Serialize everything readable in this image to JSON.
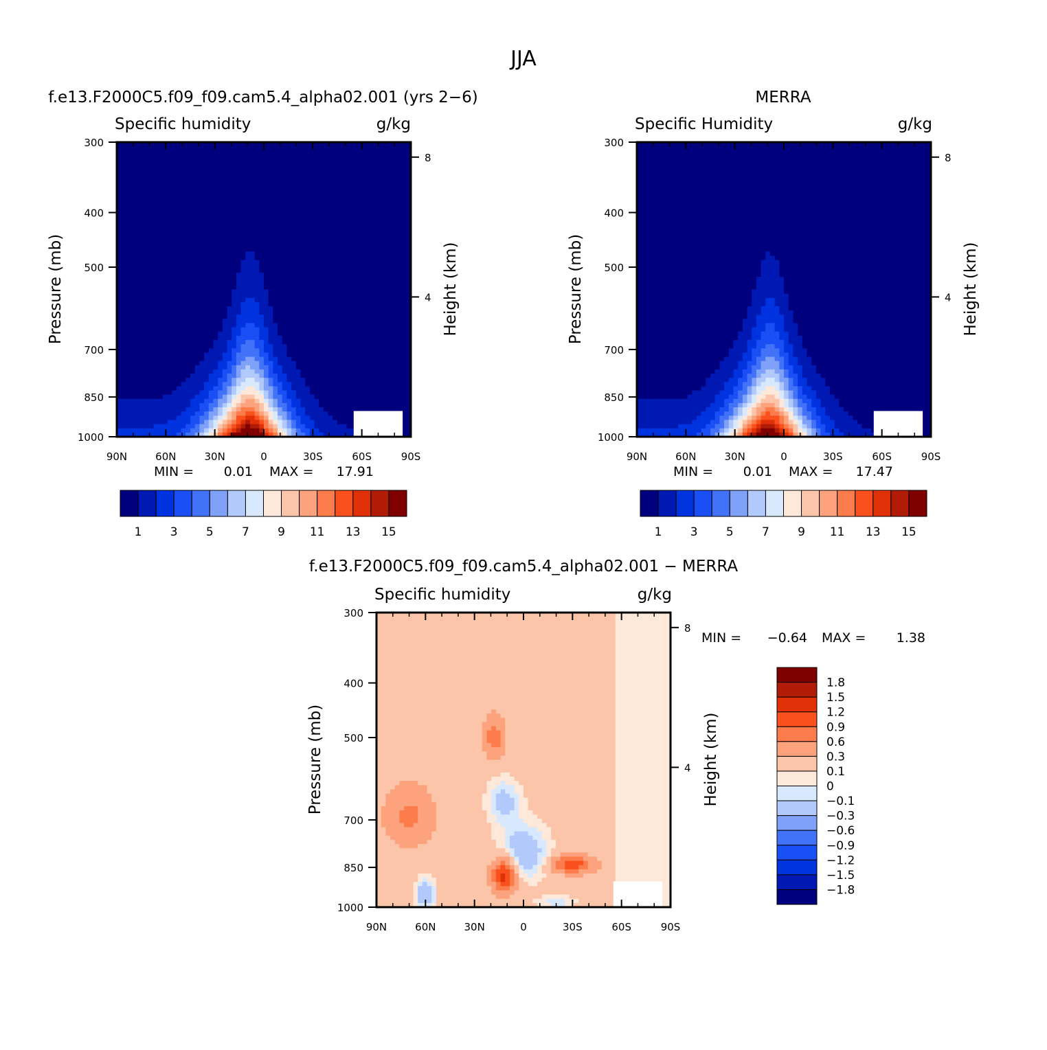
{
  "figure_title": "JJA",
  "ticks": {
    "lat": [
      "90N",
      "60N",
      "30N",
      "0",
      "30S",
      "60S",
      "90S"
    ],
    "pressure": [
      "300",
      "400",
      "500",
      "700",
      "850",
      "1000"
    ],
    "height": [
      "8",
      "4"
    ]
  },
  "axis_labels": {
    "pressure": "Pressure (mb)",
    "height": "Height (km)"
  },
  "chart_data": [
    {
      "type": "heatmap",
      "title": "f.e13.F2000C5.f09_f09.cam5.4_alpha02.001 (yrs 2−6)",
      "variable": "Specific humidity",
      "units": "g/kg",
      "min_label": "MIN =",
      "min_value": "0.01",
      "max_label": "MAX =",
      "max_value": "17.91",
      "xlim": [
        90,
        -90
      ],
      "ylim_mb": [
        1000,
        300
      ],
      "peak": {
        "lat": 8,
        "value": 17.91
      },
      "colorbar": {
        "labels": [
          "1",
          "3",
          "5",
          "7",
          "9",
          "11",
          "13",
          "15"
        ],
        "colors": [
          "#00007f",
          "#0019b3",
          "#0033e0",
          "#1a4ff5",
          "#4272f7",
          "#80a1f8",
          "#b2c9fb",
          "#d9e9fd",
          "#fde8da",
          "#fcc5aa",
          "#fca37d",
          "#fc7c4c",
          "#f9501e",
          "#e03008",
          "#b01c06",
          "#800000"
        ]
      }
    },
    {
      "type": "heatmap",
      "title": "MERRA",
      "variable": "Specific Humidity",
      "units": "g/kg",
      "min_label": "MIN =",
      "min_value": "0.01",
      "max_label": "MAX =",
      "max_value": "17.47",
      "xlim": [
        90,
        -90
      ],
      "ylim_mb": [
        1000,
        300
      ],
      "peak": {
        "lat": 8,
        "value": 17.47
      },
      "colorbar": {
        "labels": [
          "1",
          "3",
          "5",
          "7",
          "9",
          "11",
          "13",
          "15"
        ],
        "colors": [
          "#00007f",
          "#0019b3",
          "#0033e0",
          "#1a4ff5",
          "#4272f7",
          "#80a1f8",
          "#b2c9fb",
          "#d9e9fd",
          "#fde8da",
          "#fcc5aa",
          "#fca37d",
          "#fc7c4c",
          "#f9501e",
          "#e03008",
          "#b01c06",
          "#800000"
        ]
      }
    },
    {
      "type": "heatmap",
      "title": "f.e13.F2000C5.f09_f09.cam5.4_alpha02.001 − MERRA",
      "variable": "Specific humidity",
      "units": "g/kg",
      "min_label": "MIN =",
      "min_value": "−0.64",
      "max_label": "MAX =",
      "max_value": "1.38",
      "xlim": [
        90,
        -90
      ],
      "ylim_mb": [
        1000,
        300
      ],
      "features": [
        {
          "lat": 0,
          "mb": 800,
          "value": -0.45,
          "sigma_lat": 15,
          "sigma_mb": 90
        },
        {
          "lat": 12,
          "mb": 650,
          "value": -0.35,
          "sigma_lat": 10,
          "sigma_mb": 60
        },
        {
          "lat": 60,
          "mb": 950,
          "value": -0.45,
          "sigma_lat": 6,
          "sigma_mb": 60
        },
        {
          "lat": -20,
          "mb": 980,
          "value": -0.25,
          "sigma_lat": 12,
          "sigma_mb": 25
        },
        {
          "lat": 12,
          "mb": 880,
          "value": 1.2,
          "sigma_lat": 7,
          "sigma_mb": 60
        },
        {
          "lat": -30,
          "mb": 840,
          "value": 0.9,
          "sigma_lat": 12,
          "sigma_mb": 30
        },
        {
          "lat": 18,
          "mb": 500,
          "value": 0.6,
          "sigma_lat": 6,
          "sigma_mb": 40
        },
        {
          "lat": 70,
          "mb": 690,
          "value": 0.5,
          "sigma_lat": 14,
          "sigma_mb": 80
        }
      ],
      "colorbar": {
        "labels": [
          "1.8",
          "1.5",
          "1.2",
          "0.9",
          "0.6",
          "0.3",
          "0.1",
          "0",
          "−0.1",
          "−0.3",
          "−0.6",
          "−0.9",
          "−1.2",
          "−1.5",
          "−1.8"
        ],
        "colors": [
          "#800000",
          "#b01c06",
          "#e03008",
          "#f9501e",
          "#fc7c4c",
          "#fca37d",
          "#fcc5aa",
          "#fde8da",
          "#d9e9fd",
          "#b2c9fb",
          "#80a1f8",
          "#4272f7",
          "#1a4ff5",
          "#0033e0",
          "#0019b3",
          "#00007f"
        ]
      }
    }
  ]
}
